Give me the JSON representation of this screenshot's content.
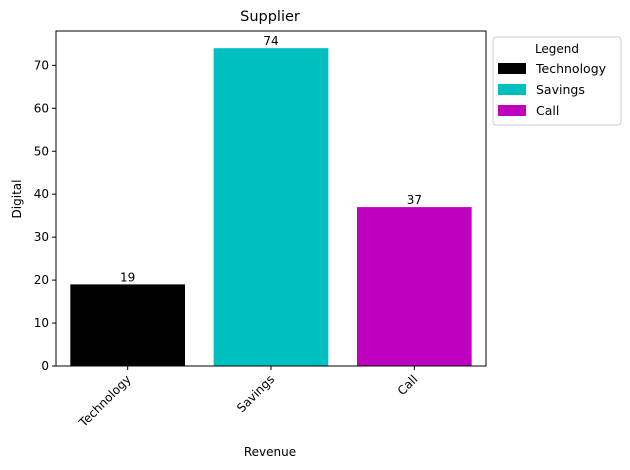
{
  "chart_data": {
    "type": "bar",
    "title": "Supplier",
    "xlabel": "Revenue",
    "ylabel": "Digital",
    "categories": [
      "Technology",
      "Savings",
      "Call"
    ],
    "values": [
      19,
      74,
      37
    ],
    "colors": [
      "#000000",
      "#00bfbf",
      "#bf00bf"
    ],
    "ylim": [
      0,
      78
    ],
    "yticks": [
      0,
      10,
      20,
      30,
      40,
      50,
      60,
      70
    ],
    "grid": false,
    "legend": {
      "title": "Legend",
      "placement": "outside-top-right",
      "entries": [
        "Technology",
        "Savings",
        "Call"
      ]
    }
  }
}
